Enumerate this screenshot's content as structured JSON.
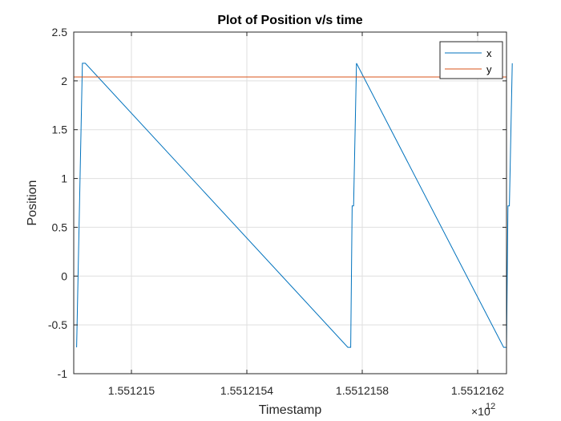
{
  "chart_data": {
    "type": "line",
    "title": "Plot of Position v/s time",
    "xlabel": "Timestamp",
    "ylabel": "Position",
    "x_exponent_base": "×10",
    "x_exponent_power": "12",
    "xlim": [
      1.5512148,
      1.5512163
    ],
    "ylim": [
      -1,
      2.5
    ],
    "x_ticks": [
      1.551215,
      1.5512154,
      1.5512158,
      1.5512162
    ],
    "x_tick_labels": [
      "1.551215",
      "1.5512154",
      "1.5512158",
      "1.5512162"
    ],
    "y_ticks": [
      -1,
      -0.5,
      0,
      0.5,
      1,
      1.5,
      2,
      2.5
    ],
    "y_tick_labels": [
      "-1",
      "-0.5",
      "0",
      "0.5",
      "1",
      "1.5",
      "2",
      "2.5"
    ],
    "grid": true,
    "legend_position": "top-right",
    "series": [
      {
        "name": "x",
        "color": "#0072BD",
        "x": [
          1.55121481,
          1.55121483,
          1.55121484,
          1.55121575,
          1.55121576,
          1.551215765,
          1.55121577,
          1.55121578,
          1.55121629,
          1.5512163,
          1.551216305,
          1.55121631,
          1.55121632
        ],
        "y": [
          -0.73,
          2.18,
          2.18,
          -0.73,
          -0.73,
          0.72,
          0.72,
          2.18,
          -0.73,
          -0.73,
          0.72,
          0.72,
          2.18
        ]
      },
      {
        "name": "y",
        "color": "#D95319",
        "x": [
          1.5512148,
          1.5512163
        ],
        "y": [
          2.04,
          2.04
        ]
      }
    ]
  }
}
